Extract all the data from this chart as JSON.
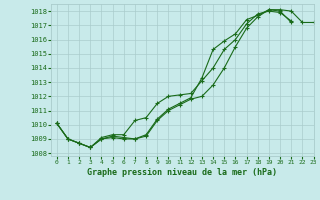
{
  "title": "Graphe pression niveau de la mer (hPa)",
  "background_color": "#c8eaea",
  "grid_color": "#aacccc",
  "line_color": "#1a6b1a",
  "xlim": [
    -0.5,
    23
  ],
  "ylim": [
    1007.8,
    1018.5
  ],
  "yticks": [
    1008,
    1009,
    1010,
    1011,
    1012,
    1013,
    1014,
    1015,
    1016,
    1017,
    1018
  ],
  "xticks": [
    0,
    1,
    2,
    3,
    4,
    5,
    6,
    7,
    8,
    9,
    10,
    11,
    12,
    13,
    14,
    15,
    16,
    17,
    18,
    19,
    20,
    21,
    22,
    23
  ],
  "series": [
    [
      1010.1,
      1009.0,
      1008.7,
      1008.4,
      1009.0,
      1009.2,
      1009.1,
      1009.0,
      1009.3,
      1010.4,
      1011.1,
      1011.5,
      1011.9,
      1013.3,
      1015.3,
      1015.9,
      1016.4,
      1017.4,
      1017.7,
      1018.1,
      1018.1,
      1018.0,
      1017.2,
      1017.2
    ],
    [
      1010.1,
      1009.0,
      1008.7,
      1008.4,
      1009.1,
      1009.3,
      1009.3,
      1010.3,
      1010.5,
      1011.5,
      1012.0,
      1012.1,
      1012.2,
      1013.1,
      1014.0,
      1015.3,
      1016.0,
      1017.1,
      1017.8,
      1018.0,
      1017.9,
      1017.3,
      null,
      null
    ],
    [
      1010.1,
      1009.0,
      1008.7,
      1008.4,
      1009.0,
      1009.1,
      1009.0,
      1009.0,
      1009.2,
      1010.3,
      1011.0,
      1011.4,
      1011.8,
      1012.0,
      1012.8,
      1014.0,
      1015.5,
      1016.8,
      1017.6,
      1018.1,
      1018.0,
      1017.2,
      null,
      null
    ]
  ]
}
